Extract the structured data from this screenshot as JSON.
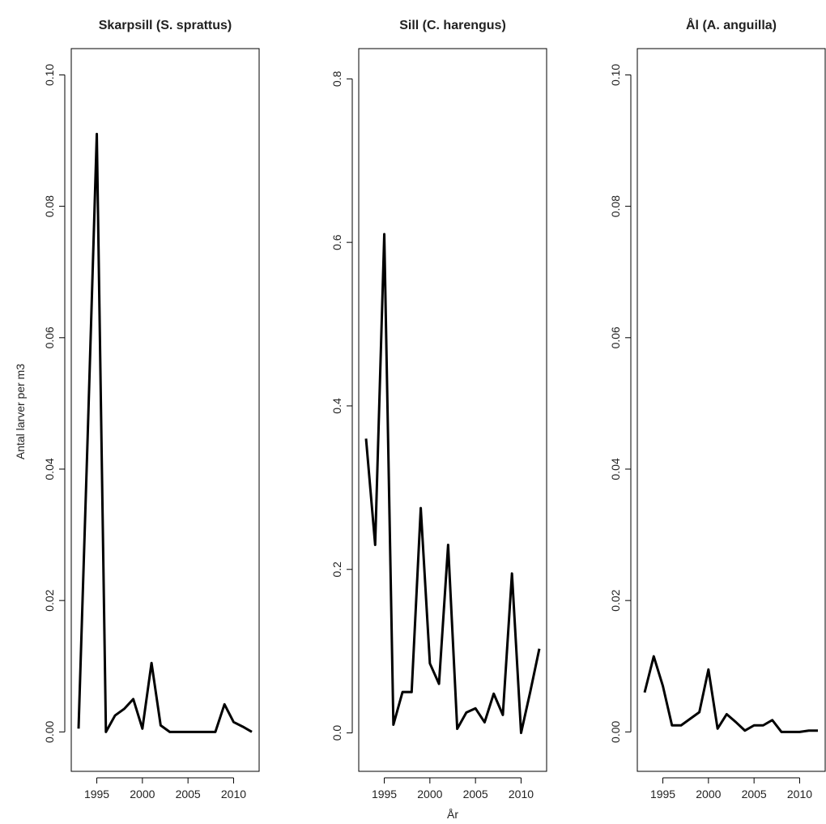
{
  "chart_data": [
    {
      "type": "line",
      "title": "Skarpsill (S. sprattus)",
      "y_label": "Antal larver per m3",
      "x": [
        1993,
        1994,
        1995,
        1996,
        1997,
        1998,
        1999,
        2000,
        2001,
        2002,
        2003,
        2004,
        2005,
        2006,
        2007,
        2008,
        2009,
        2010,
        2011,
        2012
      ],
      "series": [
        {
          "color": "#000000",
          "values": [
            0.0005,
            0.045,
            0.091,
            0.0,
            0.0025,
            0.0035,
            0.005,
            0.0005,
            0.0105,
            0.001,
            0,
            0,
            0,
            0,
            0,
            0,
            0.0042,
            0.0015,
            0.0008,
            0.0
          ]
        }
      ],
      "xlim": [
        1992.2,
        2012.8
      ],
      "xticks": [
        1995,
        2000,
        2005,
        2010
      ],
      "ylim": [
        -0.006,
        0.104
      ],
      "yticks": [
        {
          "value": 0,
          "label": "0.00"
        },
        0.02,
        0.04,
        0.06,
        0.08,
        {
          "value": 0.1,
          "label": "0.10"
        }
      ]
    },
    {
      "type": "line",
      "title": "Sill (C. harengus)",
      "x_label": "År",
      "x": [
        1993,
        1994,
        1995,
        1996,
        1997,
        1998,
        1999,
        2000,
        2001,
        2002,
        2003,
        2004,
        2005,
        2006,
        2007,
        2008,
        2009,
        2010,
        2011,
        2012
      ],
      "series": [
        {
          "color": "#000000",
          "values": [
            0.36,
            0.23,
            0.61,
            0.01,
            0.05,
            0.05,
            0.275,
            0.085,
            0.06,
            0.23,
            0.005,
            0.025,
            0.03,
            0.013,
            0.048,
            0.022,
            0.195,
            0.0,
            0.05,
            0.103
          ]
        }
      ],
      "xlim": [
        1992.2,
        2012.8
      ],
      "xticks": [
        1995,
        2000,
        2005,
        2010
      ],
      "ylim": [
        -0.047,
        0.837
      ],
      "yticks": [
        {
          "value": 0,
          "label": "0.0"
        },
        0.2,
        0.4,
        0.6,
        0.8
      ]
    },
    {
      "type": "line",
      "title": "Ål (A. anguilla)",
      "x": [
        1993,
        1994,
        1995,
        1996,
        1997,
        1998,
        1999,
        2000,
        2001,
        2002,
        2003,
        2004,
        2005,
        2006,
        2007,
        2008,
        2009,
        2010,
        2011,
        2012
      ],
      "series": [
        {
          "color": "#000000",
          "values": [
            0.006,
            0.0115,
            0.007,
            0.001,
            0.001,
            0.002,
            0.003,
            0.0095,
            0.0005,
            0.0027,
            0.0015,
            0.0002,
            0.001,
            0.001,
            0.0018,
            0,
            0,
            0,
            0.0002,
            0.0002
          ]
        }
      ],
      "xlim": [
        1992.2,
        2012.8
      ],
      "xticks": [
        1995,
        2000,
        2005,
        2010
      ],
      "ylim": [
        -0.006,
        0.104
      ],
      "yticks": [
        {
          "value": 0,
          "label": "0.00"
        },
        0.02,
        0.04,
        0.06,
        0.08,
        {
          "value": 0.1,
          "label": "0.10"
        }
      ]
    }
  ]
}
